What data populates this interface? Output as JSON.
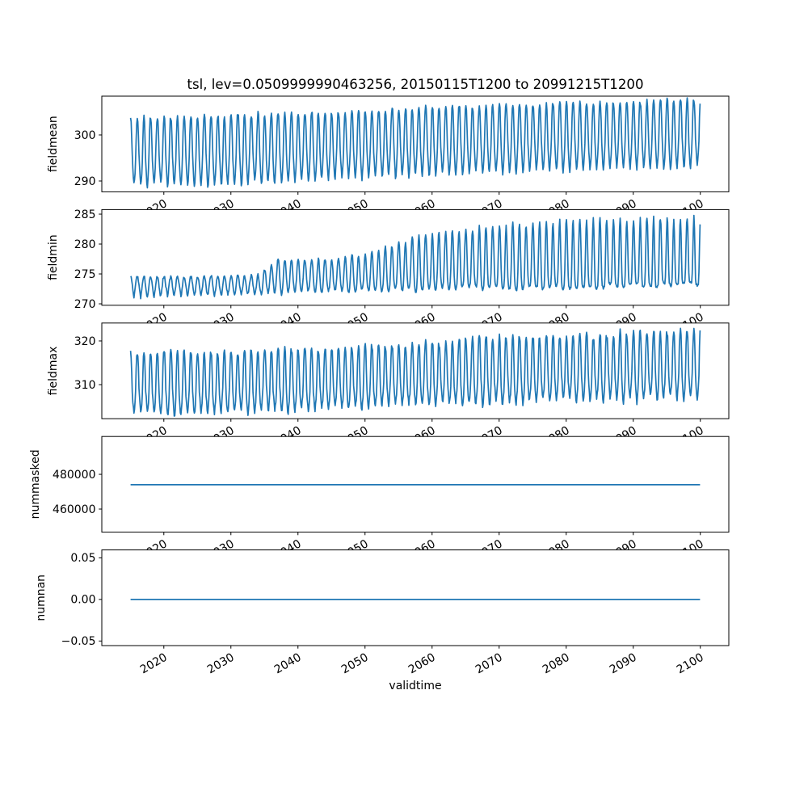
{
  "title": "tsl, lev=0.0509999990463256, 20150115T1200 to 20991215T1200",
  "xlabel": "validtime",
  "line_color": "#1f77b4",
  "background": "#ffffff",
  "x_axis": {
    "lim": [
      2010.75,
      2104.25
    ],
    "ticks": [
      2020,
      2030,
      2040,
      2050,
      2060,
      2070,
      2080,
      2090,
      2100
    ],
    "tick_labels": [
      "2020",
      "2030",
      "2040",
      "2050",
      "2060",
      "2070",
      "2080",
      "2090",
      "2100"
    ],
    "tick_rotation_deg": 30
  },
  "time_range": {
    "start": "20150115T1200",
    "end": "20991215T1200",
    "cadence": "monthly",
    "n_points": 1020
  },
  "chart_data": [
    {
      "type": "line",
      "name": "fieldmean",
      "ylabel": "fieldmean",
      "yticks": [
        290,
        300
      ],
      "ytick_labels": [
        "290",
        "300"
      ],
      "ylim": [
        287.65,
        308.42
      ],
      "x_start": 2015.0417,
      "x_end": 2099.9583,
      "samples_per_year": 12,
      "envelope_years": [
        2015,
        2025,
        2035,
        2045,
        2055,
        2065,
        2075,
        2085,
        2095,
        2100
      ],
      "envelope_high": [
        303.7,
        303.9,
        304.5,
        305.0,
        305.6,
        306.1,
        306.6,
        307.0,
        307.4,
        307.5
      ],
      "envelope_low": [
        289.0,
        288.9,
        289.5,
        290.1,
        290.9,
        291.6,
        292.1,
        292.6,
        293.0,
        293.2
      ],
      "waveform": {
        "peak_power": [
          0.95,
          0.95
        ],
        "second_harmonic": 0.22,
        "noise": 0.35,
        "phase": -0.21,
        "amp_jitter": 0.14,
        "seed": 11
      }
    },
    {
      "type": "line",
      "name": "fieldmin",
      "ylabel": "fieldmin",
      "yticks": [
        270,
        275,
        280,
        285
      ],
      "ytick_labels": [
        "270",
        "275",
        "280",
        "285"
      ],
      "ylim": [
        269.76,
        285.76
      ],
      "x_start": 2015.0417,
      "x_end": 2099.9583,
      "samples_per_year": 12,
      "envelope_years": [
        2015,
        2025,
        2034,
        2037,
        2045,
        2050,
        2055,
        2060,
        2065,
        2070,
        2075,
        2080,
        2085,
        2090,
        2095,
        2100
      ],
      "envelope_high": [
        274.6,
        274.6,
        274.8,
        277.4,
        277.6,
        278.3,
        280.2,
        282.0,
        282.6,
        283.2,
        283.5,
        283.9,
        284.1,
        284.3,
        284.5,
        284.4
      ],
      "envelope_low": [
        270.9,
        271.4,
        271.7,
        271.8,
        272.0,
        272.1,
        272.2,
        272.4,
        272.5,
        272.5,
        272.6,
        272.7,
        272.8,
        272.9,
        273.1,
        273.4
      ],
      "waveform": {
        "peak_power": [
          0.6,
          2.4
        ],
        "second_harmonic": 0.12,
        "noise": 0.22,
        "phase": -0.21,
        "amp_jitter": 0.15,
        "seed": 23
      }
    },
    {
      "type": "line",
      "name": "fieldmax",
      "ylabel": "fieldmax",
      "yticks": [
        310,
        320
      ],
      "ytick_labels": [
        "310",
        "320"
      ],
      "ylim": [
        302.2,
        324.1
      ],
      "x_start": 2015.0417,
      "x_end": 2099.9583,
      "samples_per_year": 12,
      "envelope_years": [
        2015,
        2025,
        2035,
        2045,
        2055,
        2065,
        2075,
        2085,
        2095,
        2100
      ],
      "envelope_high": [
        317.8,
        317.6,
        318.0,
        318.6,
        319.3,
        320.2,
        320.8,
        321.5,
        322.3,
        322.5
      ],
      "envelope_low": [
        303.0,
        303.0,
        303.5,
        304.1,
        304.8,
        305.5,
        306.0,
        306.3,
        306.6,
        306.8
      ],
      "waveform": {
        "peak_power": [
          1.0,
          1.0
        ],
        "second_harmonic": 0.3,
        "noise": 0.5,
        "phase": -0.21,
        "amp_jitter": 0.2,
        "seed": 37
      }
    },
    {
      "type": "line",
      "name": "nummasked",
      "ylabel": "nummasked",
      "yticks": [
        460000,
        480000
      ],
      "ytick_labels": [
        "460000",
        "480000"
      ],
      "ylim": [
        446700,
        501800
      ],
      "x_start": 2015.0417,
      "x_end": 2099.9583,
      "constant": 474000
    },
    {
      "type": "line",
      "name": "numnan",
      "ylabel": "numnan",
      "yticks": [
        -0.05,
        0.0,
        0.05
      ],
      "ytick_labels": [
        "−0.05",
        "0.00",
        "0.05"
      ],
      "ylim": [
        -0.0555,
        0.0595
      ],
      "x_start": 2015.0417,
      "x_end": 2099.9583,
      "constant": 0
    }
  ]
}
